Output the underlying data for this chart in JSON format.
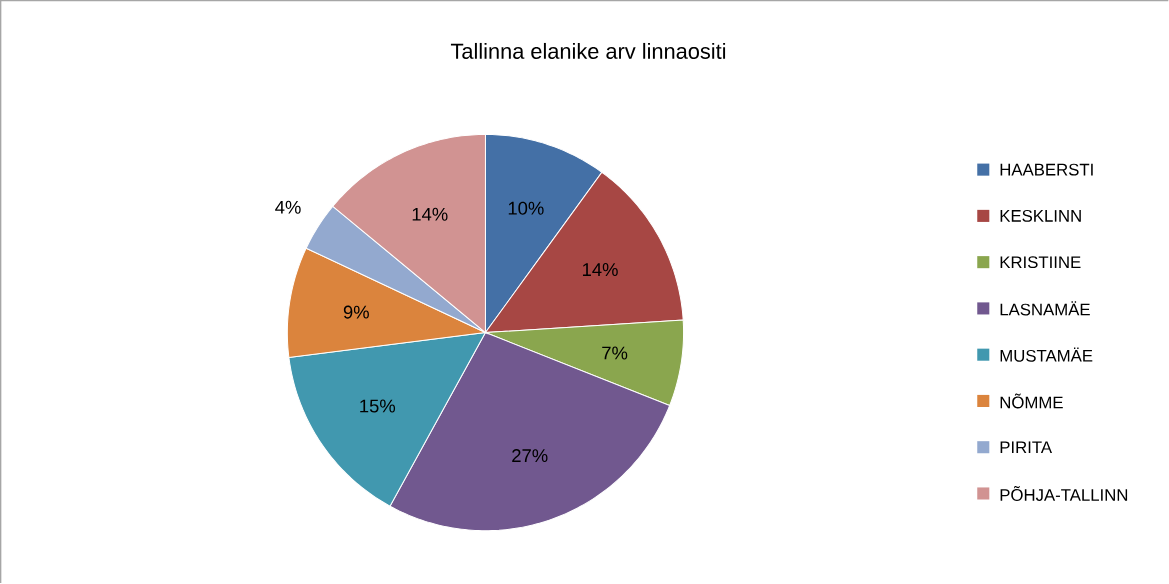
{
  "chart_data": {
    "type": "pie",
    "title": "Tallinna elanike arv linnaositi",
    "categories": [
      "HAABERSTI",
      "KESKLINN",
      "KRISTIINE",
      "LASNAMÄE",
      "MUSTAMÄE",
      "NÕMME",
      "PIRITA",
      "PÕHJA-TALLINN"
    ],
    "values": [
      10,
      14,
      7,
      27,
      15,
      9,
      4,
      14
    ],
    "value_labels": [
      "10%",
      "14%",
      "7%",
      "27%",
      "15%",
      "9%",
      "4%",
      "14%"
    ],
    "colors": [
      "#4470a6",
      "#a74744",
      "#8aa64e",
      "#71588f",
      "#4198af",
      "#db843d",
      "#93a9cf",
      "#d19392"
    ],
    "legend": "right"
  }
}
